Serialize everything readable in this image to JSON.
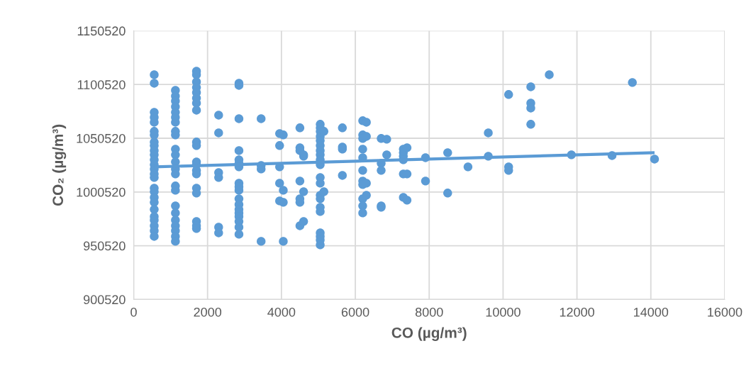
{
  "chart_data": {
    "type": "scatter",
    "xlabel": "CO (µg/m³)",
    "ylabel": "CO₂ (µg/m³)",
    "xlim": [
      0,
      16000
    ],
    "xticks": [
      0,
      2000,
      4000,
      6000,
      8000,
      10000,
      12000,
      14000,
      16000
    ],
    "ylim": [
      900520,
      1150520
    ],
    "yticks": [
      900520,
      950520,
      1000520,
      1050520,
      1100520,
      1150520
    ],
    "grid": true,
    "legend": false,
    "marker": "circle",
    "series": [
      {
        "color": "#5b9bd5",
        "x": [
          556,
          556,
          556,
          556,
          556,
          556,
          556,
          556,
          556,
          556,
          556,
          556,
          556,
          556,
          556,
          556,
          556,
          556,
          556,
          556,
          556,
          556,
          556,
          556,
          556,
          556,
          1130,
          1130,
          1130,
          1130,
          1130,
          1130,
          1130,
          1130,
          1130,
          1130,
          1130,
          1130,
          1130,
          1130,
          1130,
          1130,
          1130,
          1130,
          1130,
          1130,
          1130,
          1130,
          1130,
          1700,
          1700,
          1700,
          1700,
          1700,
          1700,
          1700,
          1700,
          1700,
          1700,
          1700,
          1700,
          1700,
          1700,
          1700,
          1700,
          1700,
          1700,
          1700,
          2300,
          2300,
          2300,
          2300,
          2300,
          2300,
          2850,
          2850,
          2850,
          2850,
          2850,
          2850,
          2850,
          2850,
          2850,
          2850,
          2850,
          2850,
          2850,
          2850,
          2850,
          2850,
          2850,
          2850,
          3450,
          3450,
          3450,
          3450,
          3950,
          3950,
          3950,
          3950,
          3950,
          4050,
          4050,
          4050,
          4050,
          4500,
          4500,
          4500,
          4500,
          4500,
          4500,
          4500,
          4600,
          4600,
          4600,
          4600,
          5050,
          5050,
          5050,
          5050,
          5050,
          5050,
          5050,
          5050,
          5050,
          5050,
          5050,
          5050,
          5050,
          5050,
          5050,
          5050,
          5050,
          5050,
          5050,
          5050,
          5150,
          5150,
          5650,
          5650,
          5650,
          5650,
          6200,
          6200,
          6200,
          6200,
          6200,
          6200,
          6200,
          6200,
          6200,
          6200,
          6200,
          6300,
          6300,
          6300,
          6300,
          6700,
          6700,
          6700,
          6700,
          6700,
          6850,
          6850,
          7300,
          7300,
          7300,
          7300,
          7300,
          7300,
          7400,
          7400,
          7400,
          7900,
          7900,
          8500,
          8500,
          9050,
          9600,
          9600,
          10150,
          10150,
          10150,
          10750,
          10750,
          10750,
          10750,
          11250,
          11850,
          12950,
          13500,
          14100
        ],
        "values": [
          1109600,
          1101700,
          1074700,
          1070000,
          1065400,
          1056900,
          1053600,
          1047000,
          1043700,
          1039000,
          1035100,
          1030500,
          1025900,
          1021900,
          1017300,
          1014000,
          1004100,
          1000800,
          995500,
          990900,
          984300,
          977700,
          974400,
          969100,
          964500,
          959200,
          1095100,
          1089800,
          1085200,
          1079900,
          1074700,
          1070000,
          1065400,
          1056900,
          1053600,
          1040400,
          1035100,
          1028500,
          1021900,
          1017300,
          1006100,
          1002100,
          987600,
          981000,
          974400,
          969100,
          964500,
          959200,
          954600,
          1112900,
          1109600,
          1103000,
          1097800,
          1093100,
          1087900,
          1083200,
          1076600,
          1047000,
          1043700,
          1028500,
          1025900,
          1020600,
          1017300,
          1004100,
          999500,
          973100,
          969100,
          966500,
          1072000,
          1055500,
          1018600,
          1014000,
          967800,
          962500,
          1101700,
          1099700,
          1068700,
          1039000,
          1030500,
          1027200,
          1023900,
          1008700,
          1005400,
          1002100,
          994200,
          988900,
          984300,
          981000,
          977700,
          973100,
          967800,
          961200,
          1068700,
          1025200,
          1021900,
          954600,
          1054900,
          1043700,
          1023900,
          1008700,
          992200,
          1053600,
          1002100,
          990900,
          954600,
          1060200,
          1041700,
          1039000,
          1010700,
          994200,
          990900,
          969100,
          1035100,
          1033800,
          1000800,
          973100,
          1063500,
          1060200,
          1056900,
          1052200,
          1048300,
          1043700,
          1039000,
          1035100,
          1030500,
          1025900,
          1014000,
          1008700,
          997500,
          994200,
          986300,
          982300,
          962500,
          959200,
          955900,
          951300,
          1056900,
          1000800,
          1060200,
          1042300,
          1040400,
          1015900,
          1066800,
          1053600,
          1050300,
          1040400,
          1032400,
          1020600,
          1010700,
          1007400,
          994200,
          987600,
          981000,
          1065400,
          1052200,
          1008700,
          997500,
          1050300,
          1027200,
          1020600,
          987600,
          986300,
          1049600,
          1035100,
          1040400,
          1037100,
          1033800,
          1030500,
          1017300,
          995500,
          1041700,
          1017300,
          992900,
          1032400,
          1010700,
          1037100,
          999500,
          1023900,
          1055500,
          1033800,
          1091200,
          1023900,
          1020600,
          1098400,
          1083200,
          1078600,
          1063500,
          1109600,
          1035100,
          1034400,
          1102400,
          1031100
        ]
      },
      {
        "type": "line",
        "color": "#5b9bd5",
        "marker": "none",
        "x": [
          556,
          14100
        ],
        "values": [
          1023900,
          1037100
        ]
      }
    ]
  }
}
